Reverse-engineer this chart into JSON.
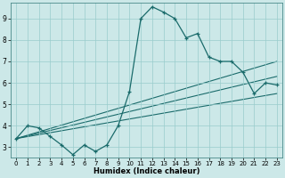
{
  "xlabel": "Humidex (Indice chaleur)",
  "bg_color": "#cce8e8",
  "grid_color": "#99cccc",
  "line_color": "#1a6b6b",
  "xlim": [
    -0.5,
    23.5
  ],
  "ylim": [
    2.5,
    9.75
  ],
  "xticks": [
    0,
    1,
    2,
    3,
    4,
    5,
    6,
    7,
    8,
    9,
    10,
    11,
    12,
    13,
    14,
    15,
    16,
    17,
    18,
    19,
    20,
    21,
    22,
    23
  ],
  "yticks": [
    3,
    4,
    5,
    6,
    7,
    8,
    9
  ],
  "x": [
    0,
    1,
    2,
    3,
    4,
    5,
    6,
    7,
    8,
    9,
    10,
    11,
    12,
    13,
    14,
    15,
    16,
    17,
    18,
    19,
    20,
    21,
    22,
    23
  ],
  "y": [
    3.4,
    4.0,
    3.9,
    3.5,
    3.1,
    2.65,
    3.1,
    2.8,
    3.1,
    4.0,
    5.6,
    9.0,
    9.55,
    9.3,
    9.0,
    8.1,
    8.3,
    7.2,
    7.0,
    7.0,
    6.5,
    5.5,
    6.0,
    5.9
  ],
  "line1_x": [
    0,
    23
  ],
  "line1_y": [
    3.4,
    5.5
  ],
  "line2_x": [
    0,
    23
  ],
  "line2_y": [
    3.4,
    6.3
  ],
  "line3_x": [
    0,
    23
  ],
  "line3_y": [
    3.4,
    7.0
  ]
}
